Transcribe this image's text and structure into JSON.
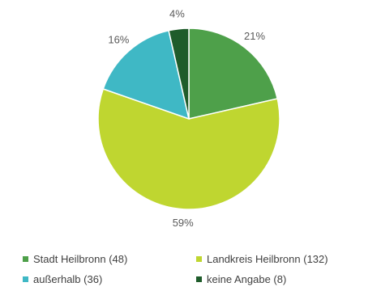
{
  "chart_data": {
    "type": "pie",
    "title": "",
    "slices": [
      {
        "label": "Stadt Heilbronn (48)",
        "value": 48,
        "percent_label": "21%",
        "color": "#4ea04a"
      },
      {
        "label": "Landkreis Heilbronn (132)",
        "value": 132,
        "percent_label": "59%",
        "color": "#bfd630"
      },
      {
        "label": "außerhalb (36)",
        "value": 36,
        "percent_label": "16%",
        "color": "#3fb8c5"
      },
      {
        "label": "keine Angabe (8)",
        "value": 8,
        "percent_label": "4%",
        "color": "#1f5c2b"
      }
    ],
    "start_angle_deg": 0,
    "direction": "clockwise",
    "legend_position": "bottom"
  }
}
